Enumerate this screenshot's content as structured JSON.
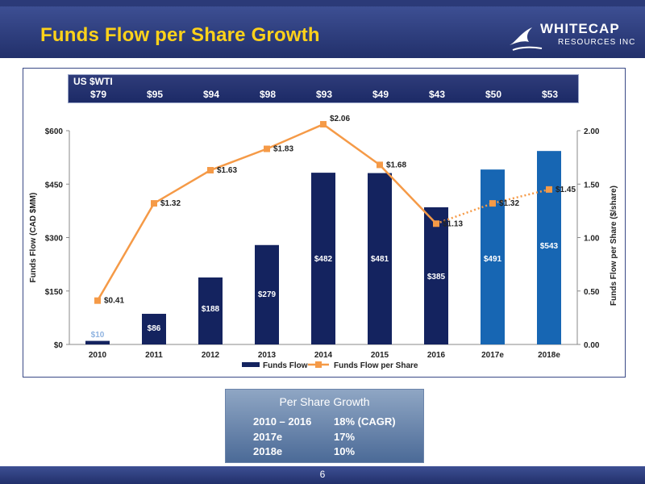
{
  "slide": {
    "title": "Funds Flow per Share Growth",
    "page_number": "6"
  },
  "logo": {
    "line1": "WHITECAP",
    "line2": "RESOURCES INC"
  },
  "wti": {
    "label": "US $WTI",
    "values": [
      "$79",
      "$95",
      "$94",
      "$98",
      "$93",
      "$49",
      "$43",
      "$50",
      "$53"
    ]
  },
  "summary": {
    "title": "Per Share Growth",
    "rows": [
      {
        "period": "2010 – 2016",
        "value": "18%  (CAGR)"
      },
      {
        "period": "2017e",
        "value": "17%"
      },
      {
        "period": "2018e",
        "value": "10%"
      }
    ]
  },
  "colors": {
    "bar_actual": "#14235f",
    "bar_estimate": "#1766b3",
    "line": "#f59a47",
    "header_bg": "#2b3a78",
    "title": "#ffd21a"
  },
  "chart_data": {
    "type": "bar",
    "categories": [
      "2010",
      "2011",
      "2012",
      "2013",
      "2014",
      "2015",
      "2016",
      "2017e",
      "2018e"
    ],
    "series": [
      {
        "name": "Funds Flow",
        "type": "bar",
        "axis": "left",
        "values": [
          10,
          86,
          188,
          279,
          482,
          481,
          385,
          491,
          543
        ],
        "labels": [
          "$10",
          "$86",
          "$188",
          "$279",
          "$482",
          "$481",
          "$385",
          "$491",
          "$543"
        ]
      },
      {
        "name": "Funds Flow per Share",
        "type": "line",
        "axis": "right",
        "values": [
          0.41,
          1.32,
          1.63,
          1.83,
          2.06,
          1.68,
          1.13,
          1.32,
          1.45
        ],
        "labels": [
          "$0.41",
          "$1.32",
          "$1.63",
          "$1.83",
          "$2.06",
          "$1.68",
          "$1.13",
          "$1.32",
          "$1.45"
        ],
        "estimate_from_index": 6
      }
    ],
    "estimate_categories": [
      "2017e",
      "2018e"
    ],
    "ylabel": "Funds Flow (CAD $MM)",
    "y2label": "Funds Flow per Share ($/share)",
    "ylim": [
      0,
      600
    ],
    "y2lim": [
      0,
      2.0
    ],
    "yticks": [
      0,
      150,
      300,
      450,
      600
    ],
    "yticklabels": [
      "$0",
      "$150",
      "$300",
      "$450",
      "$600"
    ],
    "y2ticks": [
      0,
      0.5,
      1.0,
      1.5,
      2.0
    ],
    "y2ticklabels": [
      "0.00",
      "0.50",
      "1.00",
      "1.50",
      "2.00"
    ],
    "legend": "bottom",
    "grid": false
  }
}
